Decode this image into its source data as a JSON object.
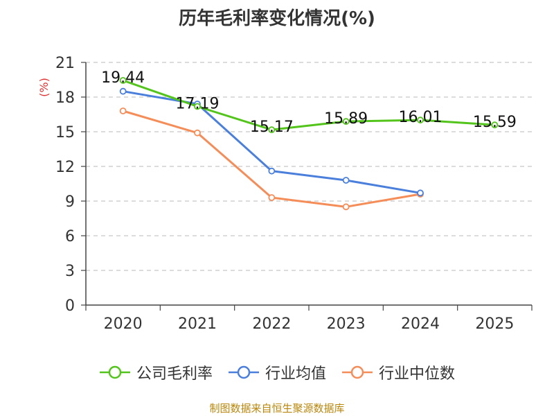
{
  "chart_data": {
    "type": "line",
    "title": "历年毛利率变化情况(%)",
    "ylabel": "(%)",
    "xlabel": "",
    "categories": [
      "2020",
      "2021",
      "2022",
      "2023",
      "2024",
      "2025"
    ],
    "ylim": [
      0,
      21
    ],
    "yticks": [
      0,
      3,
      6,
      9,
      12,
      15,
      18,
      21
    ],
    "grid": true,
    "legend_position": "bottom",
    "series": [
      {
        "name": "公司毛利率",
        "color": "#52c41a",
        "values": [
          19.44,
          17.19,
          15.17,
          15.89,
          16.01,
          15.59
        ],
        "show_labels": true
      },
      {
        "name": "行业均值",
        "color": "#4a7fdc",
        "values": [
          18.5,
          17.4,
          11.6,
          10.8,
          9.7,
          null
        ],
        "show_labels": false
      },
      {
        "name": "行业中位数",
        "color": "#f58d59",
        "values": [
          16.8,
          14.9,
          9.3,
          8.5,
          9.6,
          null
        ],
        "show_labels": false
      }
    ],
    "labels": [
      "19.44",
      "17.19",
      "15.17",
      "15.89",
      "16.01",
      "15.59"
    ]
  },
  "source": "制图数据来自恒生聚源数据库"
}
